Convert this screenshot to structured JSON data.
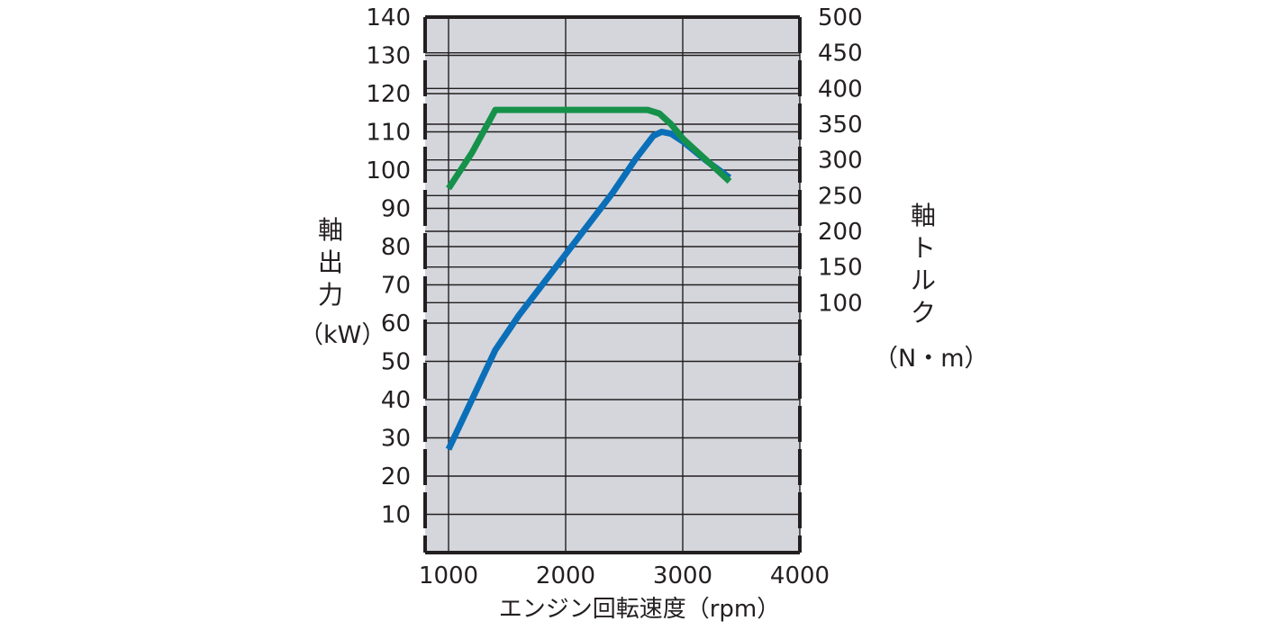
{
  "chart_data": {
    "type": "line",
    "xlabel": "エンジン回転速度（rpm）",
    "ylabel_left": "軸出力",
    "ylabel_left_unit": "（kW）",
    "ylabel_right": "軸トルク",
    "ylabel_right_unit": "（N・m）",
    "x_ticks": [
      "1000",
      "2000",
      "3000",
      "4000"
    ],
    "y_left_ticks": [
      "10",
      "20",
      "30",
      "40",
      "50",
      "60",
      "70",
      "80",
      "90",
      "100",
      "110",
      "120",
      "130",
      "140"
    ],
    "y_right_ticks": [
      "100",
      "150",
      "200",
      "250",
      "300",
      "350",
      "400",
      "450",
      "500"
    ],
    "xlim": [
      800,
      4000
    ],
    "ylim_left": [
      0,
      140
    ],
    "ylim_right": [
      -250,
      500
    ],
    "grid": true,
    "series": [
      {
        "axis": "left",
        "color": "#0a6fb8",
        "x": [
          1000,
          1200,
          1400,
          1600,
          1800,
          2000,
          2200,
          2400,
          2600,
          2750,
          2820,
          2900,
          3000,
          3100,
          3200,
          3400
        ],
        "y": [
          27,
          40,
          53,
          62,
          70,
          78,
          86,
          94,
          103,
          109,
          110,
          109.5,
          107.5,
          105,
          102.5,
          98
        ]
      },
      {
        "axis": "right",
        "color": "#16914a",
        "x": [
          1000,
          1200,
          1400,
          1600,
          1800,
          2000,
          2200,
          2400,
          2600,
          2700,
          2800,
          2900,
          3000,
          3200,
          3400
        ],
        "y": [
          260,
          310,
          370,
          370,
          370,
          370,
          370,
          370,
          370,
          370,
          365,
          350,
          330,
          300,
          270
        ]
      }
    ]
  }
}
